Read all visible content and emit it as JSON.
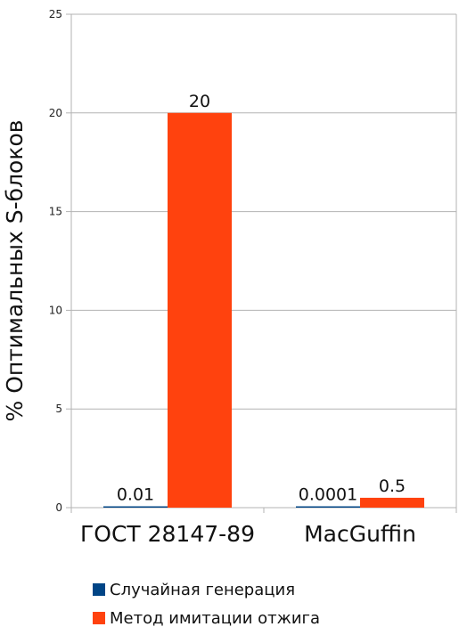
{
  "chart_data": {
    "type": "bar",
    "ylabel": "% Оптимальных S-блоков",
    "ylim": [
      0,
      25
    ],
    "yticks": [
      0,
      5,
      10,
      15,
      20,
      25
    ],
    "categories": [
      "ГОСТ 28147-89",
      "MacGuffin"
    ],
    "series": [
      {
        "name": "Случайная генерация",
        "color": "#004586",
        "values": [
          0.01,
          0.0001
        ],
        "labels": [
          "0.01",
          "0.0001"
        ]
      },
      {
        "name": "Метод имитации отжига",
        "color": "#ff420e",
        "values": [
          20,
          0.5
        ],
        "labels": [
          "20",
          "0.5"
        ]
      }
    ],
    "grid": true,
    "legend": "bottom"
  }
}
